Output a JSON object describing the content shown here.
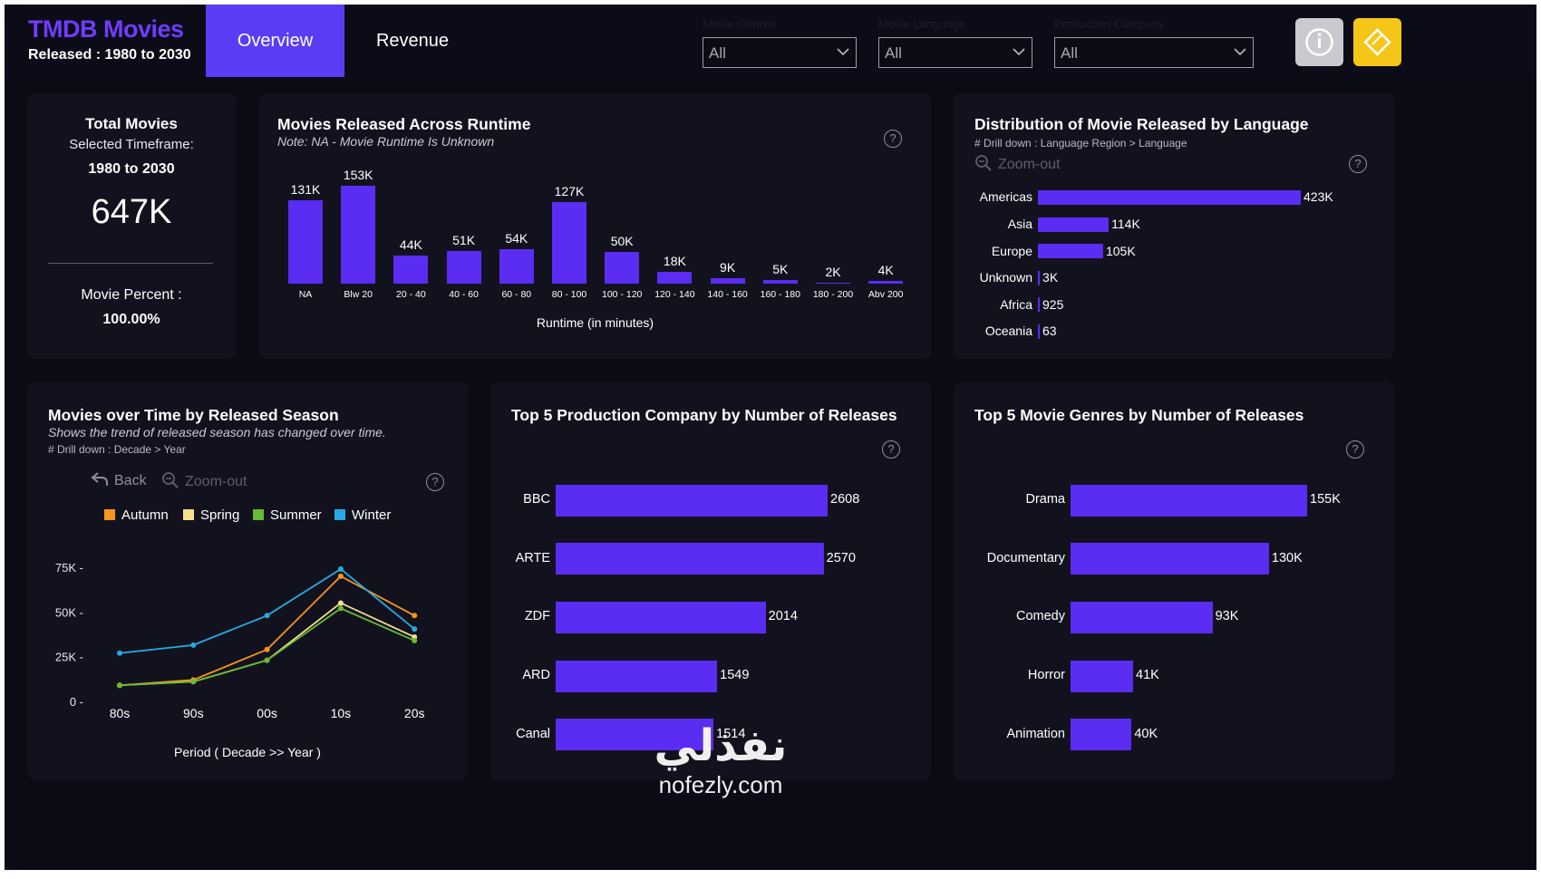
{
  "brand": {
    "title": "TMDB Movies",
    "subtitle": "Released : 1980 to 2030"
  },
  "tabs": [
    {
      "label": "Overview",
      "active": true
    },
    {
      "label": "Revenue",
      "active": false
    }
  ],
  "filters": [
    {
      "label": "Movie Genres",
      "value": "All"
    },
    {
      "label": "Movie Language",
      "value": "All"
    },
    {
      "label": "Production Company",
      "value": "All"
    }
  ],
  "buttons": {
    "info_icon": "info-icon",
    "bookmark_icon": "diamond-icon"
  },
  "colors": {
    "accent": "#5b2cf2",
    "bg": "#0b0b16",
    "card": "#12121f",
    "autumn": "#f7941d",
    "spring": "#f4e08a",
    "summer": "#66bb33",
    "winter": "#27aae1"
  },
  "kpi": {
    "title": "Total Movies",
    "selected_label": "Selected Timeframe:",
    "timeframe": "1980 to 2030",
    "total": "647K",
    "percent_label": "Movie Percent :",
    "percent": "100.00%"
  },
  "runtime_card": {
    "title": "Movies Released Across Runtime",
    "note": "Note: NA - Movie Runtime Is Unknown",
    "xlabel": "Runtime (in minutes)"
  },
  "language_card": {
    "title": "Distribution of Movie Released by Language",
    "drill": "# Drill down : Language Region > Language",
    "zoom_label": "Zoom-out"
  },
  "season_card": {
    "title": "Movies over Time by Released Season",
    "note": "Shows the trend of released season has changed over time.",
    "drill": "# Drill down : Decade > Year",
    "back_label": "Back",
    "zoom_label": "Zoom-out",
    "xlabel": "Period ( Decade >> Year )"
  },
  "company_card": {
    "title": "Top 5 Production Company by Number of Releases"
  },
  "genre_card": {
    "title": "Top 5 Movie Genres by Number of Releases"
  },
  "chart_data": [
    {
      "id": "runtime",
      "type": "bar",
      "title": "Movies Released Across Runtime",
      "xlabel": "Runtime (in minutes)",
      "categories": [
        "NA",
        "Blw 20",
        "20 - 40",
        "40 - 60",
        "60 - 80",
        "80 - 100",
        "100 - 120",
        "120 - 140",
        "140 - 160",
        "160 - 180",
        "180 - 200",
        "Abv 200"
      ],
      "values": [
        131,
        153,
        44,
        51,
        54,
        127,
        50,
        18,
        9,
        5,
        2,
        4
      ],
      "labels": [
        "131K",
        "153K",
        "44K",
        "51K",
        "54K",
        "127K",
        "50K",
        "18K",
        "9K",
        "5K",
        "2K",
        "4K"
      ],
      "units": "thousands"
    },
    {
      "id": "language",
      "type": "bar",
      "orientation": "horizontal",
      "title": "Distribution of Movie Released by Language",
      "categories": [
        "Americas",
        "Asia",
        "Europe",
        "Unknown",
        "Africa",
        "Oceania"
      ],
      "values": [
        423000,
        114000,
        105000,
        3000,
        925,
        63
      ],
      "labels": [
        "423K",
        "114K",
        "105K",
        "3K",
        "925",
        "63"
      ]
    },
    {
      "id": "season",
      "type": "line",
      "title": "Movies over Time by Released Season",
      "xlabel": "Period ( Decade >> Year )",
      "categories": [
        "80s",
        "90s",
        "00s",
        "10s",
        "20s"
      ],
      "yticks": [
        "0",
        "25K",
        "50K",
        "75K"
      ],
      "ylim": [
        0,
        75000
      ],
      "series": [
        {
          "name": "Autumn",
          "color": "#f7941d",
          "values": [
            9000,
            12000,
            29000,
            70000,
            48000
          ]
        },
        {
          "name": "Spring",
          "color": "#f4e08a",
          "values": [
            9000,
            11000,
            23000,
            55000,
            36000
          ]
        },
        {
          "name": "Summer",
          "color": "#66bb33",
          "values": [
            9000,
            11000,
            23000,
            52000,
            34000
          ]
        },
        {
          "name": "Winter",
          "color": "#27aae1",
          "values": [
            27000,
            31500,
            48000,
            74000,
            40500
          ]
        }
      ]
    },
    {
      "id": "company",
      "type": "bar",
      "orientation": "horizontal",
      "title": "Top 5 Production Company by Number of Releases",
      "categories": [
        "BBC",
        "ARTE",
        "ZDF",
        "ARD",
        "Canal"
      ],
      "values": [
        2608,
        2570,
        2014,
        1549,
        1514
      ],
      "labels": [
        "2608",
        "2570",
        "2014",
        "1549",
        "1514"
      ]
    },
    {
      "id": "genre",
      "type": "bar",
      "orientation": "horizontal",
      "title": "Top 5 Movie Genres by Number of Releases",
      "categories": [
        "Drama",
        "Documentary",
        "Comedy",
        "Horror",
        "Animation"
      ],
      "values": [
        155000,
        130000,
        93000,
        41000,
        40000
      ],
      "labels": [
        "155K",
        "130K",
        "93K",
        "41K",
        "40K"
      ]
    }
  ],
  "watermark": {
    "arabic": "نفذلي",
    "url": "nofezly.com"
  }
}
